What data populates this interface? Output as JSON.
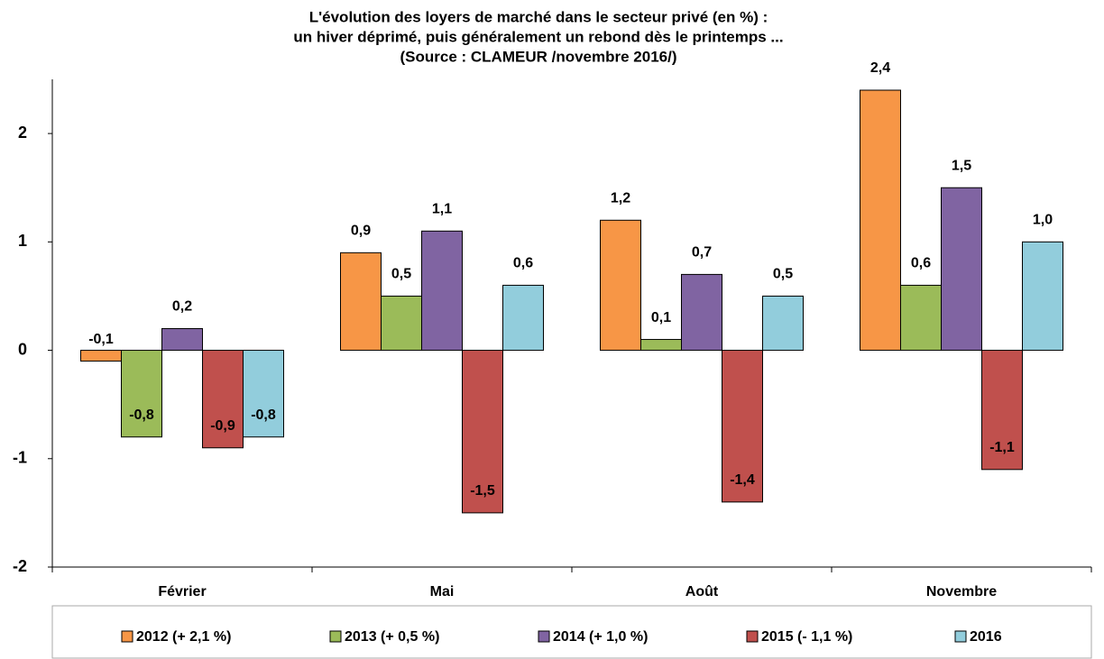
{
  "chart_data": {
    "type": "bar",
    "title": [
      "L'évolution des loyers de marché dans le secteur privé (en %) :",
      "un hiver déprimé, puis généralement un rebond dès le printemps ...",
      "(Source : CLAMEUR /novembre 2016/)"
    ],
    "categories": [
      "Février",
      "Mai",
      "Août",
      "Novembre"
    ],
    "series": [
      {
        "name": "2012 (+ 2,1 %)",
        "color": "#f79646",
        "values": [
          -0.1,
          0.9,
          1.2,
          2.4
        ],
        "value_labels": [
          "-0,1",
          "0,9",
          "1,2",
          "2,4"
        ]
      },
      {
        "name": "2013 (+ 0,5 %)",
        "color": "#9bbb59",
        "values": [
          -0.8,
          0.5,
          0.1,
          0.6
        ],
        "value_labels": [
          "-0,8",
          "0,5",
          "0,1",
          "0,6"
        ]
      },
      {
        "name": "2014 (+ 1,0 %)",
        "color": "#8064a2",
        "values": [
          0.2,
          1.1,
          0.7,
          1.5
        ],
        "value_labels": [
          "0,2",
          "1,1",
          "0,7",
          "1,5"
        ]
      },
      {
        "name": "2015 (- 1,1 %)",
        "color": "#c0504d",
        "values": [
          -0.9,
          -1.5,
          -1.4,
          -1.1
        ],
        "value_labels": [
          "-0,9",
          "-1,5",
          "-1,4",
          "-1,1"
        ]
      },
      {
        "name": "2016",
        "color": "#92cddc",
        "values": [
          -0.8,
          0.6,
          0.5,
          1.0
        ],
        "value_labels": [
          "-0,8",
          "0,6",
          "0,5",
          "1,0"
        ]
      }
    ],
    "ylim": [
      -2,
      2.5
    ],
    "yticks": [
      -2,
      -1,
      0,
      1,
      2
    ],
    "legend": "bottom"
  }
}
